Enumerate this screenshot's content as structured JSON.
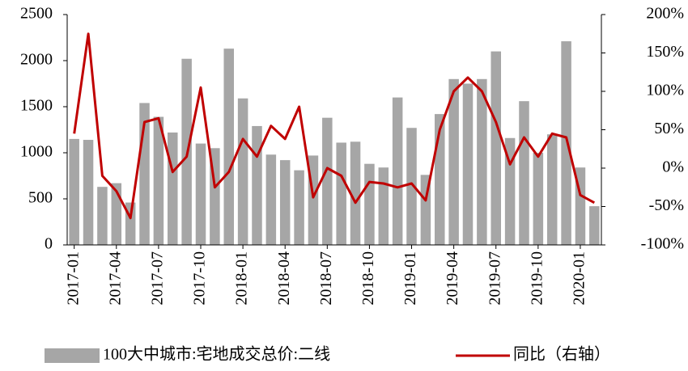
{
  "chart_data": {
    "type": "bar-line",
    "categories": [
      "2017-01",
      null,
      null,
      "2017-04",
      null,
      null,
      "2017-07",
      null,
      null,
      "2017-10",
      null,
      null,
      "2018-01",
      null,
      null,
      "2018-04",
      null,
      null,
      "2018-07",
      null,
      null,
      "2018-10",
      null,
      null,
      "2019-01",
      null,
      null,
      "2019-04",
      null,
      null,
      "2019-07",
      null,
      null,
      "2019-10",
      null,
      null,
      "2020-01",
      null
    ],
    "series": [
      {
        "name": "100大中城市:宅地成交总价:二线",
        "color": "#a6a6a6",
        "type": "bar",
        "values": [
          1150,
          1140,
          630,
          670,
          460,
          1540,
          1390,
          1220,
          2020,
          1100,
          1050,
          2130,
          1590,
          1290,
          980,
          920,
          810,
          970,
          1380,
          1110,
          1120,
          880,
          840,
          1600,
          1270,
          760,
          1420,
          1800,
          1750,
          1800,
          2100,
          1160,
          1560,
          1000,
          1200,
          2210,
          840,
          420
        ]
      },
      {
        "name": "同比（右轴）",
        "color": "#c00000",
        "type": "line",
        "axis": "y2",
        "values": [
          45,
          175,
          -10,
          -30,
          -65,
          60,
          65,
          -5,
          15,
          105,
          -25,
          -5,
          38,
          15,
          55,
          38,
          80,
          -38,
          0,
          -10,
          -45,
          -18,
          -20,
          -25,
          -20,
          -42,
          50,
          100,
          118,
          100,
          60,
          5,
          40,
          15,
          45,
          40,
          -35,
          -45
        ]
      }
    ],
    "ylim": [
      0,
      2500
    ],
    "yticks": [
      0,
      500,
      1000,
      1500,
      2000,
      2500
    ],
    "y2lim": [
      -100,
      200
    ],
    "y2ticks": [
      {
        "value": -100,
        "label": "-100%"
      },
      {
        "value": -50,
        "label": "-50%"
      },
      {
        "value": 0,
        "label": "0%"
      },
      {
        "value": 50,
        "label": "50%"
      },
      {
        "value": 100,
        "label": "100%"
      },
      {
        "value": 150,
        "label": "150%"
      },
      {
        "value": 200,
        "label": "200%"
      }
    ],
    "legend": "bottom"
  }
}
